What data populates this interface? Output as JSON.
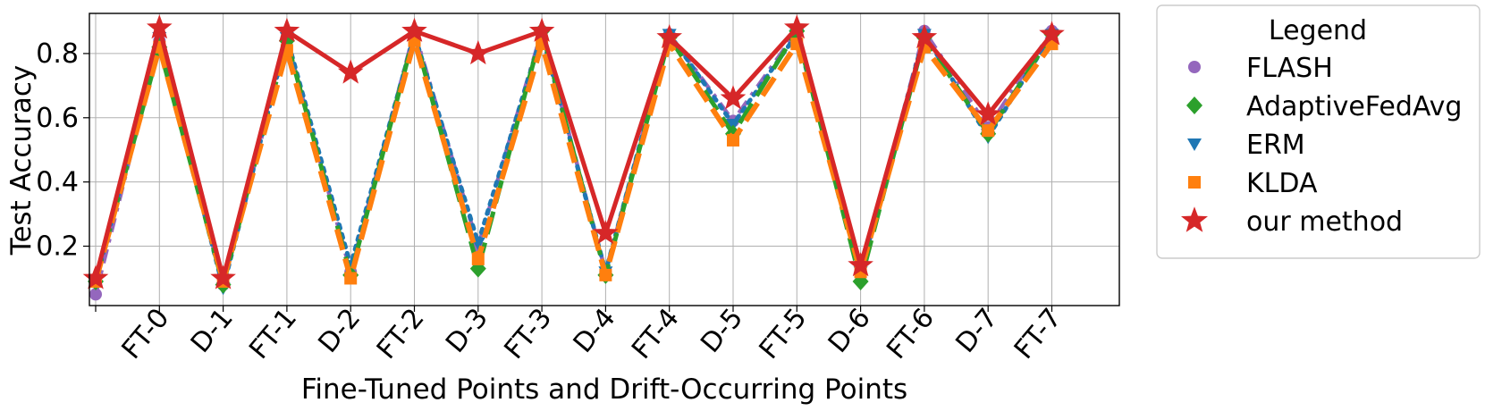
{
  "chart_data": {
    "type": "line",
    "title": "",
    "xlabel": "Fine-Tuned Points and Drift-Occurring Points",
    "ylabel": "Test Accuracy",
    "ylim": [
      0.015,
      0.925
    ],
    "yticks": [
      "0.2",
      "0.4",
      "0.6",
      "0.8"
    ],
    "categories": [
      "",
      "FT-0",
      "D-1",
      "FT-1",
      "D-2",
      "FT-2",
      "D-3",
      "FT-3",
      "D-4",
      "FT-4",
      "D-5",
      "FT-5",
      "D-6",
      "FT-6",
      "D-7",
      "FT-7"
    ],
    "grid": true,
    "legend": {
      "title": "Legend",
      "position": "outside-right"
    },
    "series": [
      {
        "name": "FLASH",
        "color": "#9467bd",
        "marker": "circle",
        "line": "dashdot",
        "values": [
          0.05,
          0.84,
          0.08,
          0.84,
          0.12,
          0.87,
          0.2,
          0.87,
          0.12,
          0.86,
          0.59,
          0.87,
          0.11,
          0.87,
          0.57,
          0.87
        ]
      },
      {
        "name": "AdaptiveFedAvg",
        "color": "#2ca02c",
        "marker": "diamond",
        "line": "dashed",
        "values": [
          0.09,
          0.82,
          0.08,
          0.84,
          0.11,
          0.86,
          0.13,
          0.87,
          0.11,
          0.85,
          0.55,
          0.87,
          0.09,
          0.85,
          0.55,
          0.86
        ]
      },
      {
        "name": "ERM",
        "color": "#1f77b4",
        "marker": "triangle-down",
        "line": "dotted",
        "values": [
          0.09,
          0.85,
          0.07,
          0.85,
          0.14,
          0.86,
          0.21,
          0.86,
          0.12,
          0.86,
          0.58,
          0.86,
          0.12,
          0.86,
          0.54,
          0.86
        ]
      },
      {
        "name": "KLDA",
        "color": "#ff7f0e",
        "marker": "square",
        "line": "longdash",
        "values": [
          0.09,
          0.82,
          0.09,
          0.81,
          0.1,
          0.84,
          0.16,
          0.83,
          0.11,
          0.83,
          0.53,
          0.83,
          0.12,
          0.82,
          0.56,
          0.83
        ]
      },
      {
        "name": "our method",
        "color": "#d62728",
        "marker": "star",
        "line": "solid",
        "values": [
          0.1,
          0.88,
          0.1,
          0.87,
          0.74,
          0.87,
          0.8,
          0.87,
          0.24,
          0.85,
          0.66,
          0.88,
          0.14,
          0.85,
          0.61,
          0.86
        ]
      }
    ]
  }
}
